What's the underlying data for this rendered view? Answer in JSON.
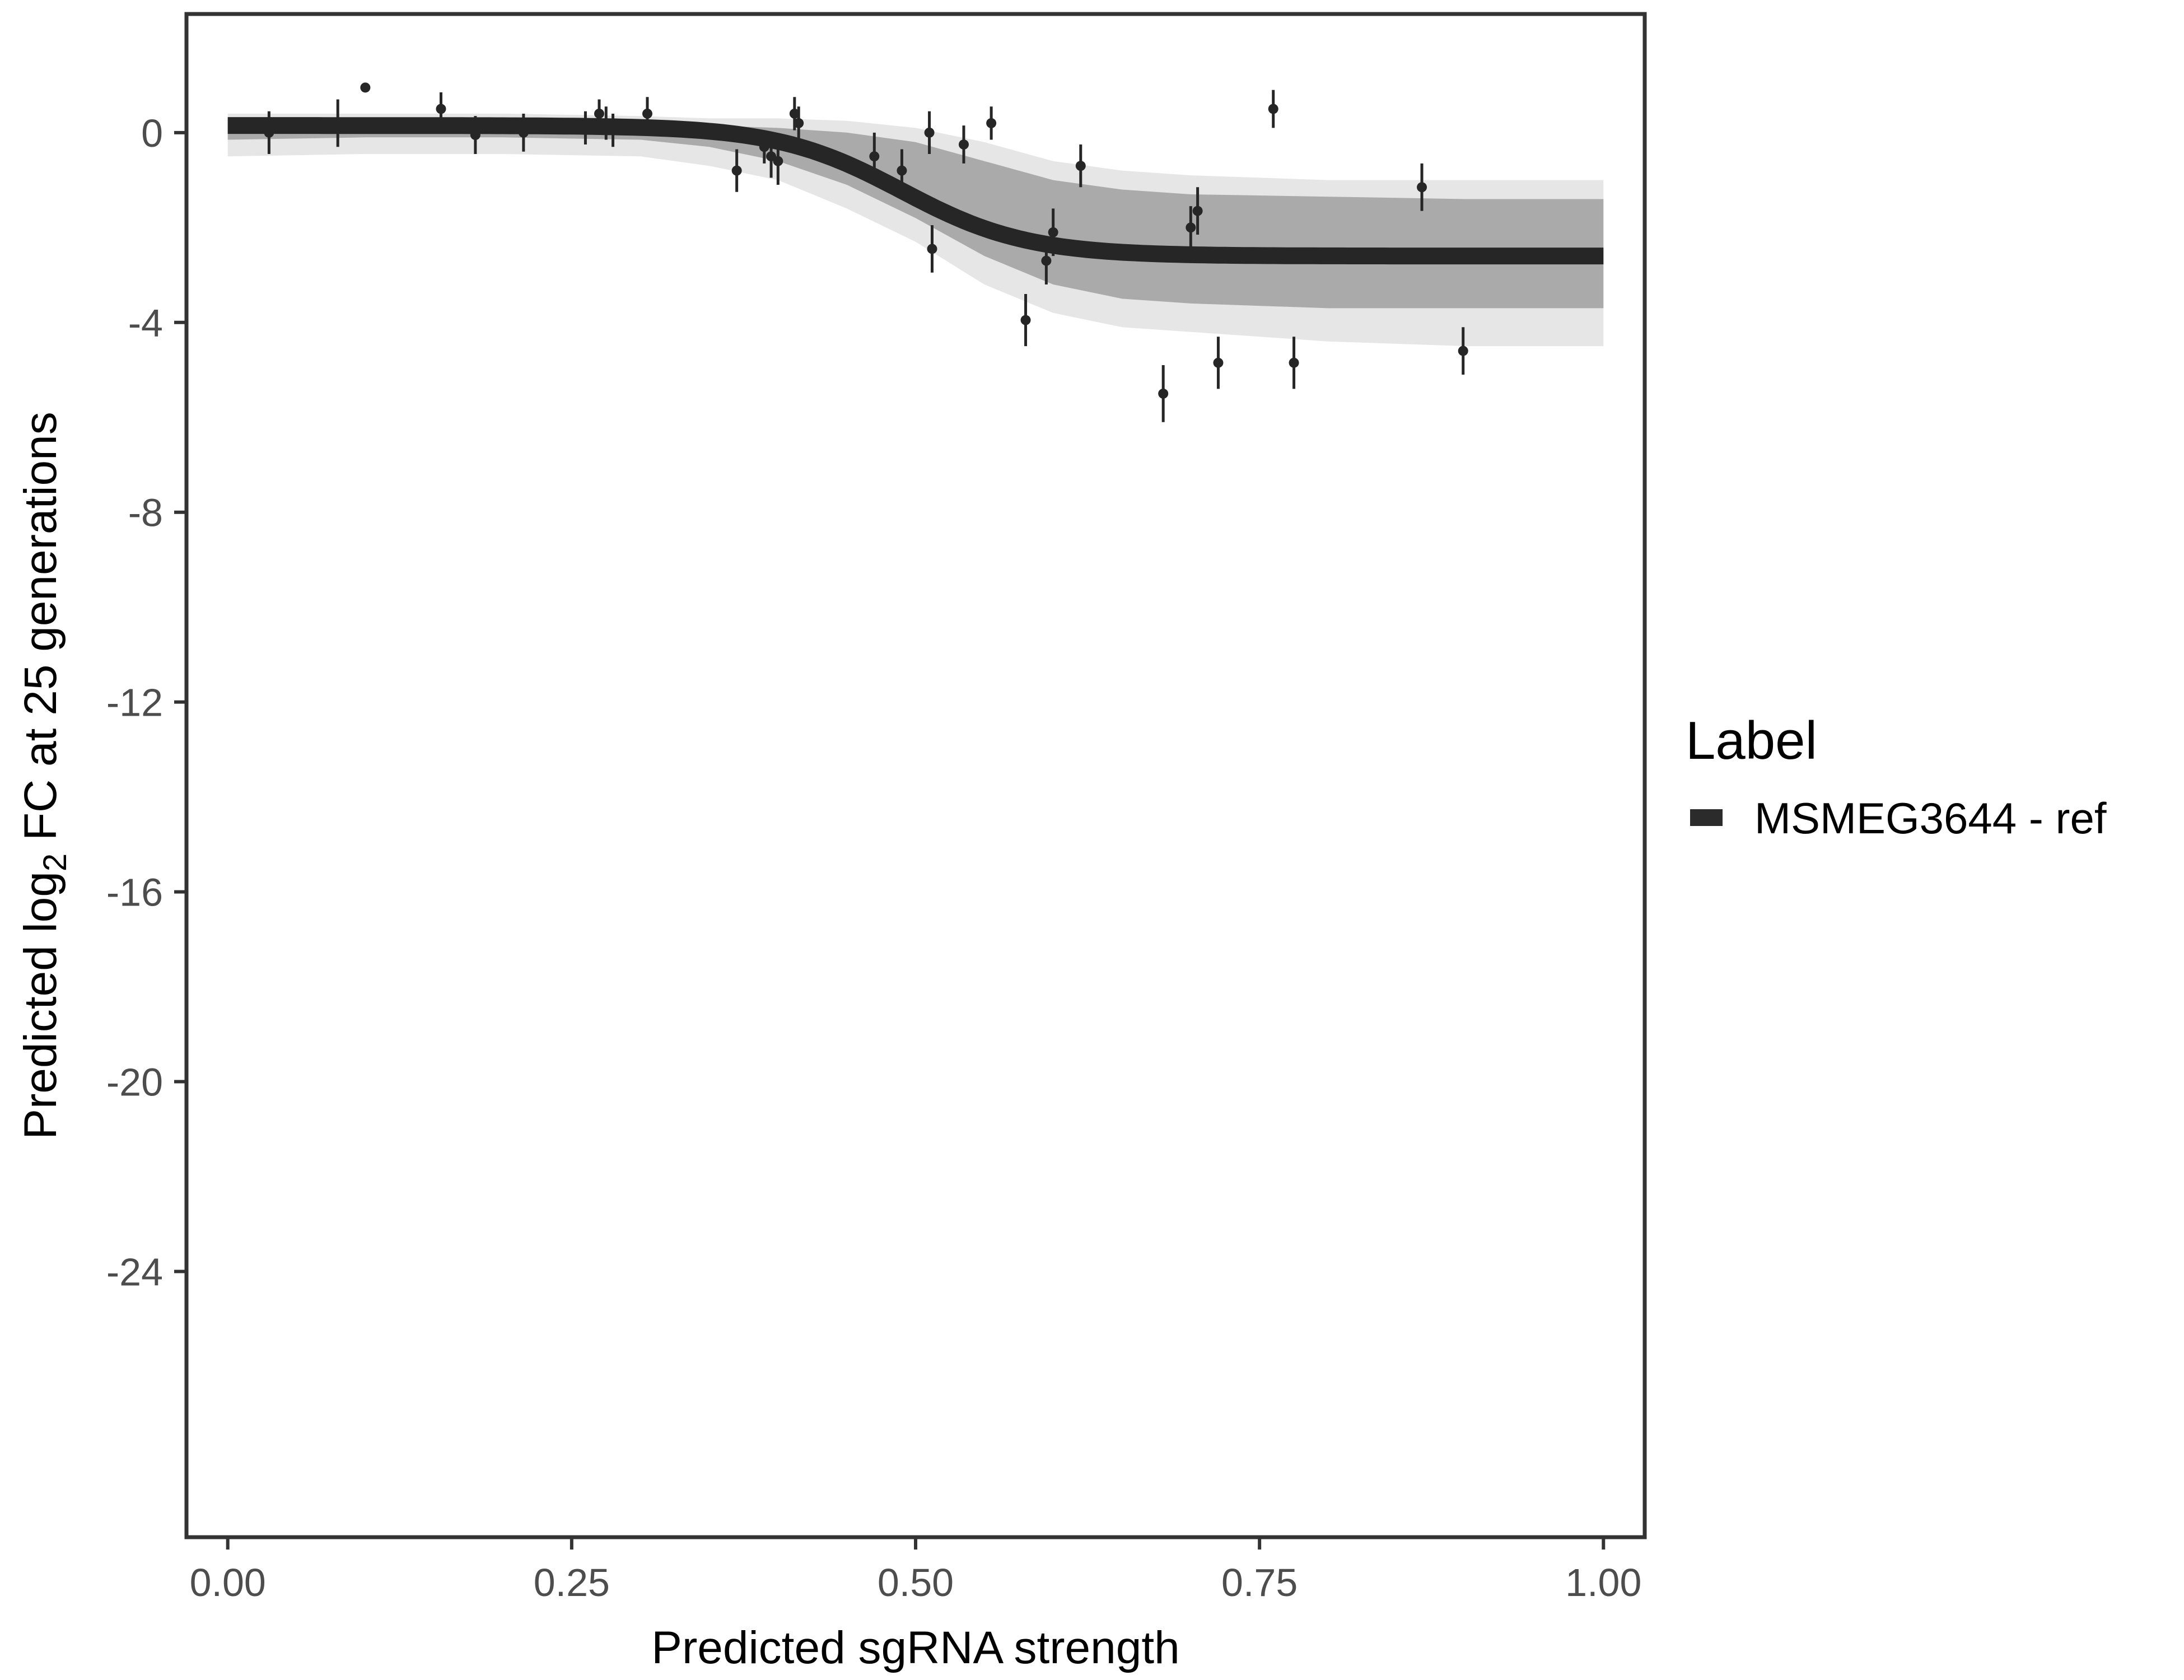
{
  "chart_data": {
    "type": "line",
    "title": "",
    "xlabel": "Predicted sgRNA strength",
    "ylabel_prefix": "Predicted  log",
    "ylabel_subscript": "2",
    "ylabel_suffix": " FC at 25 generations",
    "xlim": [
      -0.03,
      1.03
    ],
    "ylim": [
      -29.6,
      2.5
    ],
    "x_ticks": [
      0.0,
      0.25,
      0.5,
      0.75,
      1.0
    ],
    "x_tick_labels": [
      "0.00",
      "0.25",
      "0.50",
      "0.75",
      "1.00"
    ],
    "y_ticks": [
      0,
      -4,
      -8,
      -12,
      -16,
      -20,
      -24
    ],
    "y_tick_labels": [
      "0",
      "-4",
      "-8",
      "-12",
      "-16",
      "-20",
      "-24"
    ],
    "grid": false,
    "legend": {
      "title": "Label",
      "position": "right",
      "entries": [
        {
          "label": "MSMEG3644 - ref",
          "color": "#2b2b2b"
        }
      ]
    },
    "colors": {
      "fit_line": "#262626",
      "band": "#a6a6a6",
      "band_light": "#e6e6e6",
      "points": "#262626",
      "panel_border": "#333333"
    },
    "fit_curve": {
      "model": "logistic",
      "upper": 0.15,
      "lower": -2.6,
      "midpoint": 0.49,
      "slope": 22,
      "x_range": [
        0.0,
        1.0
      ]
    },
    "uncertainty_band": {
      "x": [
        0.0,
        0.1,
        0.2,
        0.3,
        0.35,
        0.4,
        0.45,
        0.5,
        0.55,
        0.6,
        0.65,
        0.7,
        0.8,
        0.9,
        1.0
      ],
      "lower": [
        -0.15,
        -0.1,
        -0.1,
        -0.15,
        -0.3,
        -0.6,
        -1.1,
        -1.8,
        -2.6,
        -3.2,
        -3.5,
        -3.6,
        -3.7,
        -3.7,
        -3.7
      ],
      "upper": [
        0.3,
        0.3,
        0.3,
        0.2,
        0.15,
        0.1,
        0.0,
        -0.2,
        -0.6,
        -1.0,
        -1.2,
        -1.3,
        -1.35,
        -1.4,
        -1.4
      ],
      "outer_lower": [
        -0.5,
        -0.45,
        -0.45,
        -0.5,
        -0.7,
        -1.0,
        -1.6,
        -2.3,
        -3.2,
        -3.8,
        -4.1,
        -4.2,
        -4.4,
        -4.5,
        -4.5
      ],
      "outer_upper": [
        0.4,
        0.4,
        0.4,
        0.35,
        0.3,
        0.3,
        0.25,
        0.1,
        -0.2,
        -0.6,
        -0.8,
        -0.9,
        -1.0,
        -1.0,
        -1.0
      ]
    },
    "points": [
      {
        "x": 0.03,
        "y": 0.0,
        "err": 0.45
      },
      {
        "x": 0.08,
        "y": 0.2,
        "err": 0.5
      },
      {
        "x": 0.1,
        "y": 0.95,
        "err": 0.1
      },
      {
        "x": 0.155,
        "y": 0.5,
        "err": 0.35
      },
      {
        "x": 0.18,
        "y": -0.05,
        "err": 0.4
      },
      {
        "x": 0.215,
        "y": 0.0,
        "err": 0.4
      },
      {
        "x": 0.26,
        "y": 0.1,
        "err": 0.35
      },
      {
        "x": 0.27,
        "y": 0.4,
        "err": 0.3
      },
      {
        "x": 0.275,
        "y": 0.2,
        "err": 0.35
      },
      {
        "x": 0.28,
        "y": 0.05,
        "err": 0.35
      },
      {
        "x": 0.305,
        "y": 0.4,
        "err": 0.35
      },
      {
        "x": 0.37,
        "y": -0.8,
        "err": 0.45
      },
      {
        "x": 0.39,
        "y": -0.3,
        "err": 0.35
      },
      {
        "x": 0.395,
        "y": -0.5,
        "err": 0.45
      },
      {
        "x": 0.4,
        "y": -0.6,
        "err": 0.5
      },
      {
        "x": 0.412,
        "y": 0.4,
        "err": 0.35
      },
      {
        "x": 0.415,
        "y": 0.2,
        "err": 0.35
      },
      {
        "x": 0.47,
        "y": -0.5,
        "err": 0.5
      },
      {
        "x": 0.49,
        "y": -0.8,
        "err": 0.45
      },
      {
        "x": 0.51,
        "y": 0.0,
        "err": 0.45
      },
      {
        "x": 0.512,
        "y": -2.45,
        "err": 0.5
      },
      {
        "x": 0.535,
        "y": -0.25,
        "err": 0.4
      },
      {
        "x": 0.555,
        "y": 0.2,
        "err": 0.35
      },
      {
        "x": 0.58,
        "y": -3.95,
        "err": 0.55
      },
      {
        "x": 0.595,
        "y": -2.7,
        "err": 0.5
      },
      {
        "x": 0.6,
        "y": -2.1,
        "err": 0.5
      },
      {
        "x": 0.62,
        "y": -0.7,
        "err": 0.45
      },
      {
        "x": 0.68,
        "y": -5.5,
        "err": 0.6
      },
      {
        "x": 0.7,
        "y": -2.0,
        "err": 0.45
      },
      {
        "x": 0.705,
        "y": -1.65,
        "err": 0.5
      },
      {
        "x": 0.72,
        "y": -4.85,
        "err": 0.55
      },
      {
        "x": 0.76,
        "y": 0.5,
        "err": 0.4
      },
      {
        "x": 0.775,
        "y": -4.85,
        "err": 0.55
      },
      {
        "x": 0.868,
        "y": -1.15,
        "err": 0.5
      },
      {
        "x": 0.898,
        "y": -4.6,
        "err": 0.5
      }
    ]
  }
}
